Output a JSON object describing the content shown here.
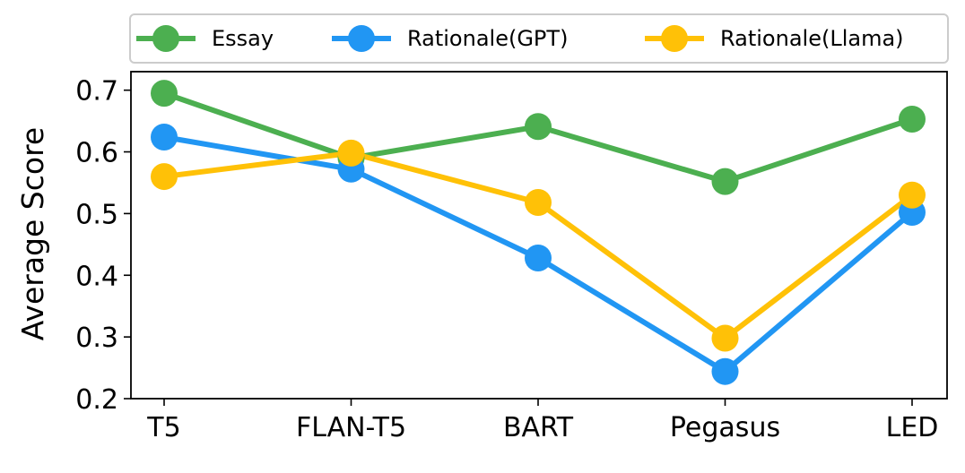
{
  "chart_data": {
    "type": "line",
    "title": "",
    "xlabel": "",
    "ylabel": "Average Score",
    "categories": [
      "T5",
      "FLAN-T5",
      "BART",
      "Pegasus",
      "LED"
    ],
    "ylim": [
      0.2,
      0.73
    ],
    "yticks": [
      "0.2",
      "0.3",
      "0.4",
      "0.5",
      "0.6",
      "0.7"
    ],
    "grid": false,
    "legend_position": "top",
    "series": [
      {
        "name": "Essay",
        "color": "#4caf50",
        "values": [
          0.695,
          0.59,
          0.641,
          0.552,
          0.653
        ]
      },
      {
        "name": "Rationale(GPT)",
        "color": "#2196f3",
        "values": [
          0.624,
          0.572,
          0.428,
          0.244,
          0.502
        ]
      },
      {
        "name": "Rationale(Llama)",
        "color": "#ffc107",
        "values": [
          0.56,
          0.598,
          0.518,
          0.298,
          0.53
        ]
      }
    ]
  }
}
